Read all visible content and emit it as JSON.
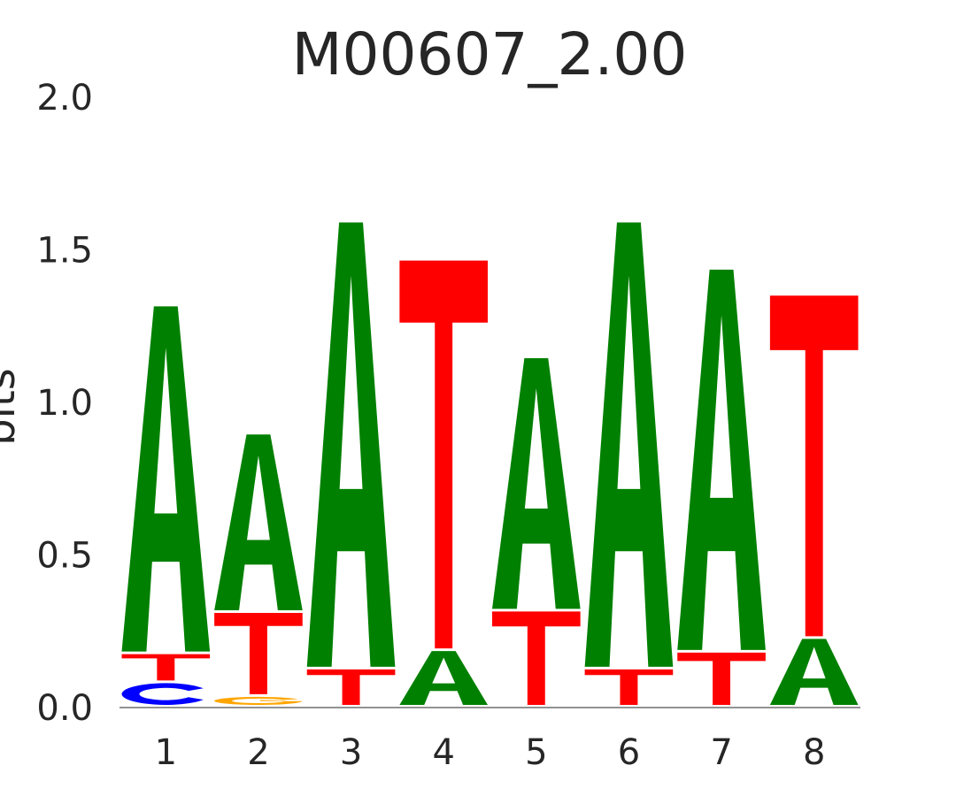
{
  "chart_data": {
    "type": "sequence-logo",
    "title": "M00607_2.00",
    "ylabel": "bits",
    "xlabel": "",
    "ylim": [
      0,
      2.0
    ],
    "yticks": [
      "0.0",
      "0.5",
      "1.0",
      "1.5",
      "2.0"
    ],
    "grid": false,
    "colors": {
      "A": "#008000",
      "C": "#0000ff",
      "G": "#ffa500",
      "T": "#ff0000"
    },
    "positions": [
      {
        "pos": "1",
        "stack": [
          {
            "letter": "C",
            "bits": 0.08
          },
          {
            "letter": "T",
            "bits": 0.095
          },
          {
            "letter": "A",
            "bits": 1.14
          }
        ]
      },
      {
        "pos": "2",
        "stack": [
          {
            "letter": "G",
            "bits": 0.035
          },
          {
            "letter": "T",
            "bits": 0.275
          },
          {
            "letter": "A",
            "bits": 0.585
          }
        ]
      },
      {
        "pos": "3",
        "stack": [
          {
            "letter": "T",
            "bits": 0.125
          },
          {
            "letter": "A",
            "bits": 1.465
          }
        ]
      },
      {
        "pos": "4",
        "stack": [
          {
            "letter": "A",
            "bits": 0.185
          },
          {
            "letter": "T",
            "bits": 1.28
          }
        ]
      },
      {
        "pos": "5",
        "stack": [
          {
            "letter": "T",
            "bits": 0.315
          },
          {
            "letter": "A",
            "bits": 0.83
          }
        ]
      },
      {
        "pos": "6",
        "stack": [
          {
            "letter": "T",
            "bits": 0.125
          },
          {
            "letter": "A",
            "bits": 1.465
          }
        ]
      },
      {
        "pos": "7",
        "stack": [
          {
            "letter": "T",
            "bits": 0.18
          },
          {
            "letter": "A",
            "bits": 1.255
          }
        ]
      },
      {
        "pos": "8",
        "stack": [
          {
            "letter": "A",
            "bits": 0.225
          },
          {
            "letter": "T",
            "bits": 1.125
          }
        ]
      }
    ]
  }
}
